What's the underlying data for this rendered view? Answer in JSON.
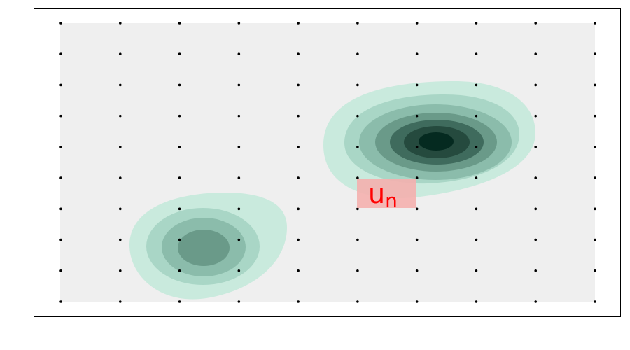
{
  "diagram": {
    "grid": {
      "columns": 10,
      "rows": 10
    },
    "blobs": [
      {
        "id": "upper-right-distribution",
        "levels": 6
      },
      {
        "id": "lower-left-distribution",
        "levels": 4
      }
    ],
    "label": {
      "main": "u",
      "subscript": "n"
    },
    "colors": {
      "frame_border": "#000000",
      "panel_fill": "#efefef",
      "grid_dot": "#000000",
      "contour_levels": [
        "#c9eadd",
        "#a9d6c6",
        "#8bbcab",
        "#6a9a89",
        "#3f6b5d",
        "#254a3e",
        "#052a20"
      ],
      "label_bg": "#f4b0ae",
      "label_text": "#ff0000"
    }
  }
}
